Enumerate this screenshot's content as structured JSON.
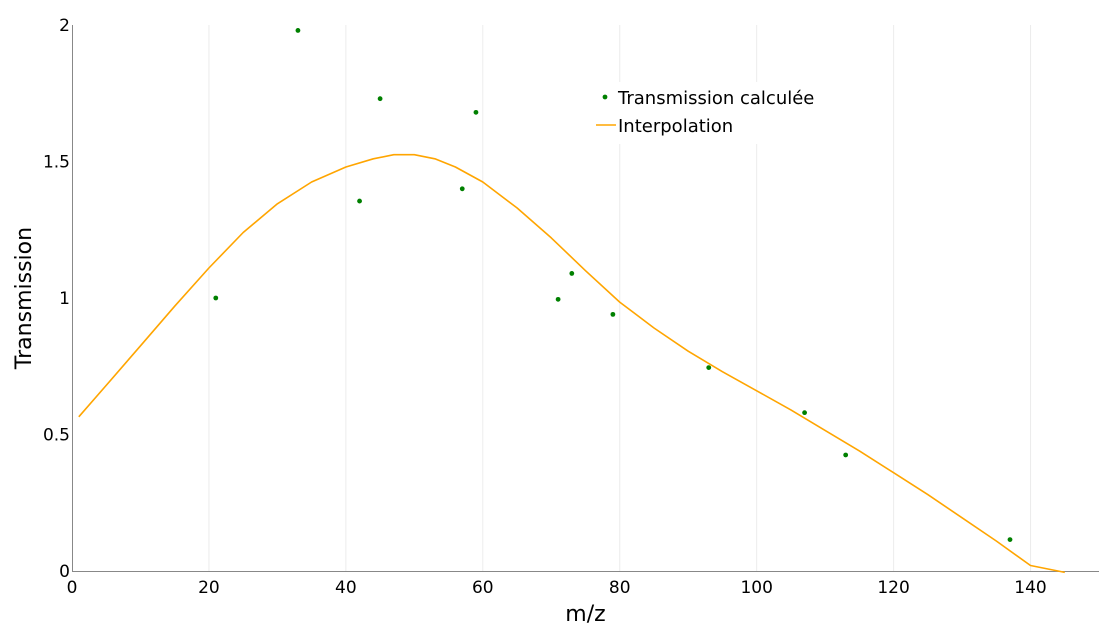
{
  "chart_data": {
    "type": "scatter",
    "xlabel": "m/z",
    "ylabel": "Transmission",
    "xlim": [
      0,
      150
    ],
    "ylim": [
      0,
      2
    ],
    "x_ticks": [
      0,
      20,
      40,
      60,
      80,
      100,
      120,
      140
    ],
    "x_tick_labels": [
      "0",
      "20",
      "40",
      "60",
      "80",
      "100",
      "120",
      "140"
    ],
    "y_ticks": [
      0,
      0.5,
      1,
      1.5,
      2
    ],
    "y_tick_labels": [
      "0",
      "0.5",
      "1",
      "1.5",
      "2"
    ],
    "grid": "vertical",
    "legend_position": "top-right",
    "series": [
      {
        "name": "Transmission calculée",
        "type": "scatter",
        "color": "#008000",
        "points": [
          [
            21,
            1.0
          ],
          [
            33,
            1.98
          ],
          [
            42,
            1.355
          ],
          [
            45,
            1.73
          ],
          [
            57,
            1.4
          ],
          [
            59,
            1.68
          ],
          [
            71,
            0.995
          ],
          [
            73,
            1.09
          ],
          [
            79,
            0.94
          ],
          [
            93,
            0.745
          ],
          [
            107,
            0.58
          ],
          [
            113,
            0.425
          ],
          [
            137,
            0.115
          ]
        ]
      },
      {
        "name": "Interpolation",
        "type": "line",
        "color": "#ffa500",
        "points": [
          [
            1,
            0.565
          ],
          [
            5,
            0.68
          ],
          [
            10,
            0.825
          ],
          [
            15,
            0.97
          ],
          [
            20,
            1.11
          ],
          [
            25,
            1.24
          ],
          [
            30,
            1.345
          ],
          [
            35,
            1.425
          ],
          [
            40,
            1.48
          ],
          [
            44,
            1.51
          ],
          [
            47,
            1.525
          ],
          [
            50,
            1.525
          ],
          [
            53,
            1.51
          ],
          [
            56,
            1.48
          ],
          [
            60,
            1.425
          ],
          [
            65,
            1.33
          ],
          [
            70,
            1.22
          ],
          [
            75,
            1.1
          ],
          [
            80,
            0.985
          ],
          [
            85,
            0.89
          ],
          [
            90,
            0.805
          ],
          [
            95,
            0.73
          ],
          [
            100,
            0.66
          ],
          [
            105,
            0.59
          ],
          [
            110,
            0.515
          ],
          [
            115,
            0.44
          ],
          [
            120,
            0.36
          ],
          [
            125,
            0.28
          ],
          [
            130,
            0.195
          ],
          [
            135,
            0.11
          ],
          [
            140,
            0.02
          ],
          [
            145,
            -0.015
          ]
        ]
      }
    ]
  }
}
